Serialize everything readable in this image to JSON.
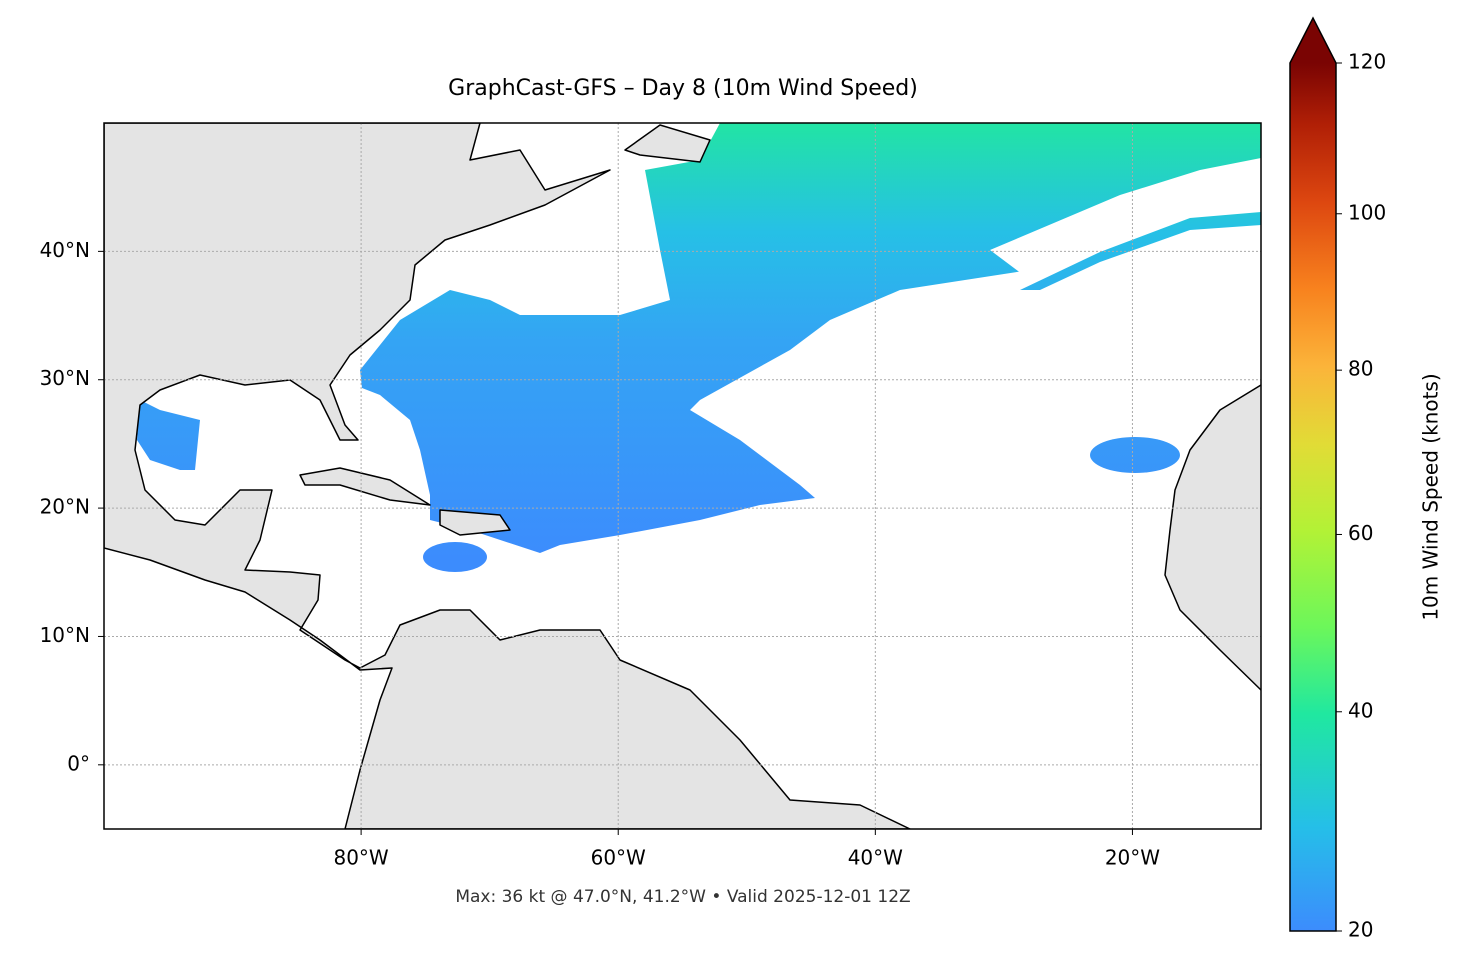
{
  "map": {
    "title": "GraphCast-GFS – Day 8 (10m Wind Speed)",
    "footnote": "Max: 36 kt @ 47.0°N, 41.2°W • Valid 2025-12-01 12Z",
    "xlim": [
      -100,
      -10
    ],
    "ylim": [
      -5,
      50
    ],
    "xticks": [
      {
        "value": -80,
        "label": "80°W"
      },
      {
        "value": -60,
        "label": "60°W"
      },
      {
        "value": -40,
        "label": "40°W"
      },
      {
        "value": -20,
        "label": "20°W"
      }
    ],
    "yticks": [
      {
        "value": 0,
        "label": "0°"
      },
      {
        "value": 10,
        "label": "10°N"
      },
      {
        "value": 20,
        "label": "20°N"
      },
      {
        "value": 30,
        "label": "30°N"
      },
      {
        "value": 40,
        "label": "40°N"
      }
    ],
    "colorbar": {
      "label": "10m Wind Speed (knots)",
      "lim": [
        20,
        120
      ],
      "ticks": [
        20,
        40,
        60,
        80,
        100,
        120
      ],
      "extend": "max"
    }
  }
}
